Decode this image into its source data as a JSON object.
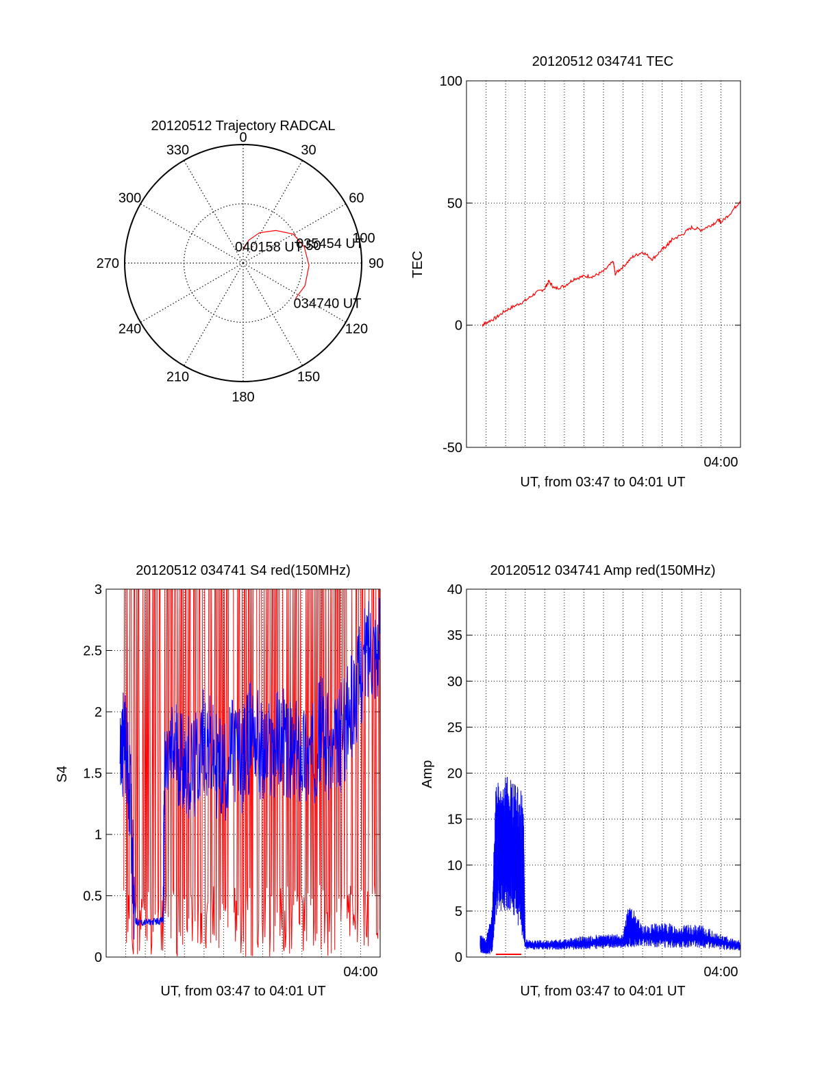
{
  "colors": {
    "red": "#ff0000",
    "blue": "#0000ff",
    "axis": "#000000",
    "grid": "#000000",
    "background": "#ffffff"
  },
  "chart_data": [
    {
      "id": "polar",
      "type": "scatter",
      "title": "20120512 Trajectory RADCAL",
      "coordinate_system": "polar (azimuth deg, elevation deg)",
      "azimuth_labels": [
        "0",
        "30",
        "60",
        "90",
        "120",
        "150",
        "180",
        "210",
        "240",
        "270",
        "300",
        "330"
      ],
      "ring_labels": [
        "50",
        "100"
      ],
      "grid": true,
      "series": [
        {
          "color": "red",
          "points": [
            [
              0,
              80
            ],
            [
              14,
              72
            ],
            [
              28,
              64
            ],
            [
              45,
              55
            ],
            [
              60,
              46
            ],
            [
              75,
              42
            ],
            [
              92,
              40
            ],
            [
              110,
              40
            ],
            [
              124,
              42
            ]
          ]
        }
      ],
      "annotations": [
        {
          "text": "040158 UT",
          "azimuth": 0,
          "elevation": 80
        },
        {
          "text": "035454 UT",
          "azimuth": 75,
          "elevation": 42
        },
        {
          "text": "034740 UT",
          "azimuth": 124,
          "elevation": 42
        }
      ]
    },
    {
      "id": "tec",
      "type": "line",
      "title": "20120512 034741 TEC",
      "xlabel": "UT, from 03:47 to 04:01 UT",
      "ylabel": "TEC",
      "ylim": [
        -50,
        100
      ],
      "yticks": [
        "-50",
        "0",
        "50",
        "100"
      ],
      "xlim": [
        "03:47",
        "04:01"
      ],
      "xtick_labels": [
        "04:00"
      ],
      "grid": true,
      "series": [
        {
          "color": "red",
          "x_minutes": [
            0.8,
            1.0,
            1.5,
            2.0,
            2.5,
            3.0,
            3.5,
            4.0,
            4.2,
            4.5,
            5.0,
            5.5,
            6.0,
            6.5,
            7.0,
            7.5,
            7.6,
            8.0,
            8.5,
            9.0,
            9.5,
            10.0,
            10.3,
            10.5,
            11.0,
            11.5,
            12.0,
            12.5,
            12.9,
            13.0,
            13.5,
            14.0
          ],
          "values": [
            0,
            1,
            3,
            6,
            8,
            10,
            13,
            15,
            18,
            15,
            16,
            19,
            20,
            20,
            22,
            26,
            21,
            24,
            28,
            30,
            27,
            31,
            33,
            35,
            37,
            40,
            39,
            41,
            43,
            42,
            46,
            51
          ]
        }
      ]
    },
    {
      "id": "s4",
      "type": "line",
      "title": "20120512 034741 S4 red(150MHz)",
      "xlabel": "UT, from 03:47 to 04:01 UT",
      "ylabel": "S4",
      "ylim": [
        0,
        3
      ],
      "yticks": [
        "0",
        "0.5",
        "1",
        "1.5",
        "2",
        "2.5",
        "3"
      ],
      "xlim": [
        "03:47",
        "04:01"
      ],
      "xtick_labels": [
        "04:00"
      ],
      "grid": true,
      "series": [
        {
          "color": "red",
          "description": "rapid spikes spanning 0 to 3 over 03:48–04:01",
          "x_range_minutes": [
            0.9,
            14.0
          ],
          "y_range": [
            0,
            3
          ]
        },
        {
          "color": "blue",
          "x_minutes": [
            0.7,
            0.9,
            1.2,
            1.5,
            1.6,
            2.0,
            2.5,
            2.9,
            3.0,
            3.5,
            4.0,
            4.5,
            5.0,
            5.5,
            6.0,
            6.5,
            7.0,
            7.5,
            8.0,
            8.5,
            9.0,
            9.5,
            10.0,
            10.5,
            11.0,
            11.5,
            12.0,
            12.5,
            13.0,
            13.5,
            14.0
          ],
          "values": [
            1.6,
            1.8,
            1.4,
            0.3,
            0.28,
            0.28,
            0.29,
            0.3,
            1.5,
            1.7,
            1.6,
            1.5,
            1.8,
            1.6,
            1.5,
            1.7,
            1.6,
            1.9,
            1.6,
            1.7,
            1.8,
            1.6,
            1.7,
            1.6,
            1.9,
            1.6,
            1.8,
            2.0,
            2.3,
            2.6,
            2.5
          ]
        }
      ]
    },
    {
      "id": "amp",
      "type": "line",
      "title": "20120512 034741 Amp red(150MHz)",
      "xlabel": "UT, from 03:47 to 04:01 UT",
      "ylabel": "Amp",
      "ylim": [
        0,
        40
      ],
      "yticks": [
        "0",
        "5",
        "10",
        "15",
        "20",
        "25",
        "30",
        "35",
        "40"
      ],
      "xlim": [
        "03:47",
        "04:01"
      ],
      "xtick_labels": [
        "04:00"
      ],
      "grid": true,
      "series": [
        {
          "color": "red",
          "x_minutes": [
            1.5,
            2.8
          ],
          "values": [
            0.3,
            0.3
          ]
        },
        {
          "color": "blue",
          "x_minutes": [
            0.7,
            1.0,
            1.3,
            1.5,
            2.0,
            2.5,
            2.9,
            3.0,
            4.0,
            5.0,
            6.0,
            7.0,
            8.0,
            8.3,
            9.0,
            10.0,
            11.0,
            12.0,
            13.0,
            14.0
          ],
          "upper": [
            2.5,
            2.0,
            5.0,
            19.0,
            20.0,
            19.0,
            18.0,
            2.0,
            1.8,
            2.0,
            2.3,
            2.5,
            2.5,
            6.0,
            3.5,
            3.8,
            3.5,
            3.5,
            2.5,
            1.8
          ],
          "lower": [
            0.5,
            0.2,
            0.3,
            4.5,
            5.0,
            4.0,
            2.0,
            0.8,
            0.8,
            0.8,
            0.8,
            0.9,
            1.0,
            1.0,
            1.2,
            1.0,
            1.0,
            1.0,
            0.8,
            0.7
          ]
        }
      ]
    }
  ]
}
